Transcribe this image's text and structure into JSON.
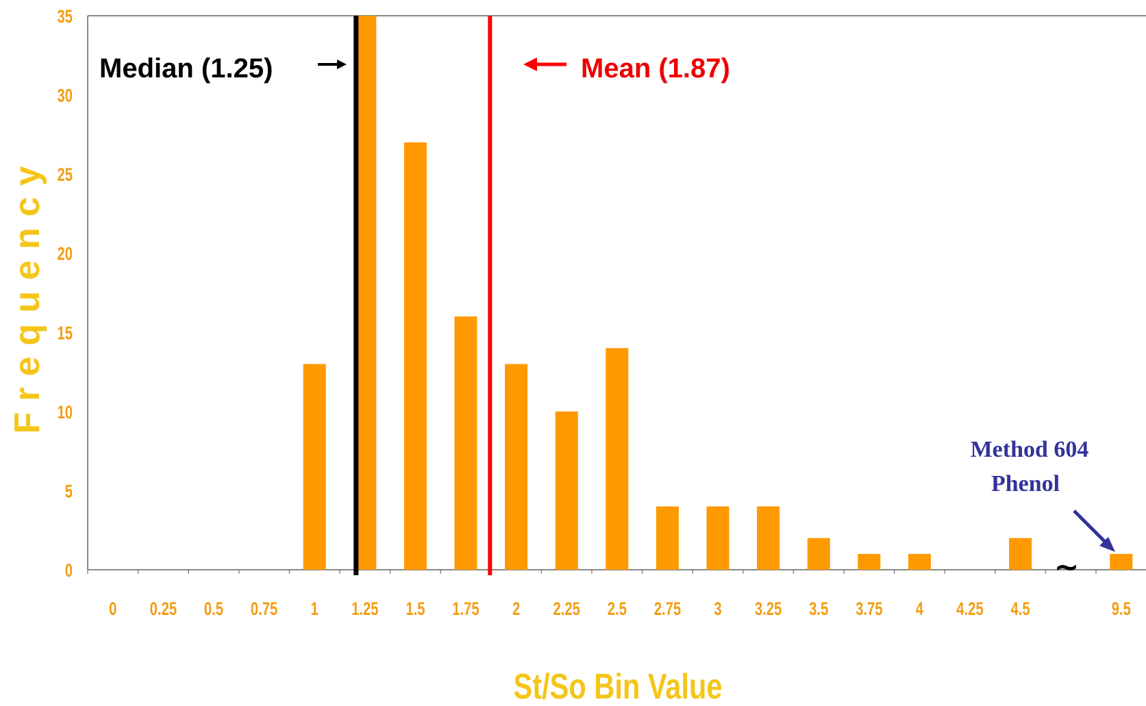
{
  "chart_data": {
    "type": "bar",
    "title": "",
    "xlabel": "St/So Bin Value",
    "ylabel": "Frequency",
    "ylim": [
      0,
      35
    ],
    "yticks": [
      0,
      5,
      10,
      15,
      20,
      25,
      30,
      35
    ],
    "categories": [
      "0",
      "0.25",
      "0.5",
      "0.75",
      "1",
      "1.25",
      "1.5",
      "1.75",
      "2",
      "2.25",
      "2.5",
      "2.75",
      "3",
      "3.25",
      "3.5",
      "3.75",
      "4",
      "4.25",
      "4.5",
      "",
      "9.5"
    ],
    "values": [
      0,
      0,
      0,
      0,
      13,
      35,
      27,
      16,
      13,
      10,
      14,
      4,
      4,
      4,
      2,
      1,
      1,
      0,
      2,
      0,
      1
    ],
    "bar_color": "#ff9900",
    "grid": false,
    "axis_break": {
      "after_category": "4.5",
      "symbol": "~"
    },
    "reference_lines": [
      {
        "name": "median",
        "value": 1.25,
        "label": "Median (1.25)",
        "color": "#000000"
      },
      {
        "name": "mean",
        "value": 1.87,
        "label": "Mean (1.87)",
        "color": "#ff0000"
      }
    ],
    "annotations": [
      {
        "text_line1": "Method 604",
        "text_line2": "Phenol",
        "target_category": "9.5",
        "color": "#33339a"
      }
    ]
  },
  "colors": {
    "tick_text": "#f39c12",
    "axis_label": "#f5c518",
    "axis_line": "#888888"
  }
}
